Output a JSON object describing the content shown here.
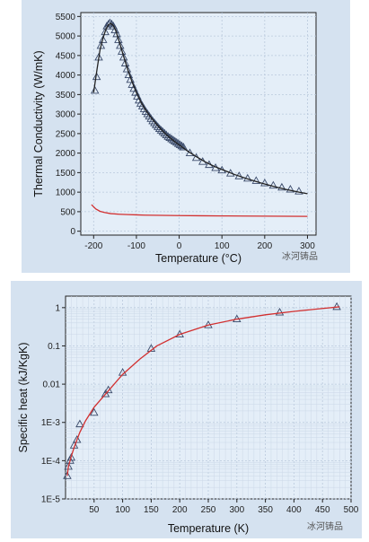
{
  "chart_data": [
    {
      "type": "scatter",
      "xlabel": "Temperature (°C)",
      "ylabel": "Thermal Conductivity (W/mK)",
      "xlim": [
        -230,
        320
      ],
      "ylim": [
        -100,
        5600
      ],
      "xticks": [
        -200,
        -100,
        0,
        100,
        200,
        300
      ],
      "xtick_labels": [
        "-200",
        "-100",
        "0",
        "100",
        "200",
        "300"
      ],
      "yticks": [
        0,
        500,
        1000,
        1500,
        2000,
        2500,
        3000,
        3500,
        4000,
        4500,
        5000,
        5500
      ],
      "ytick_labels": [
        "0",
        "500",
        "1000",
        "1500",
        "2000",
        "2500",
        "3000",
        "3500",
        "4000",
        "4500",
        "5000",
        "5500"
      ],
      "grid": true,
      "series": [
        {
          "marker": "triangle",
          "color": "#3a4a6a",
          "x": [
            -197,
            -193,
            -188,
            -183,
            -178,
            -173,
            -169,
            -165,
            -162,
            -158,
            -154,
            -150,
            -146,
            -142,
            -138,
            -134,
            -130,
            -126,
            -122,
            -118,
            -114,
            -110,
            -106,
            -102,
            -98,
            -94,
            -90,
            -86,
            -82,
            -78,
            -74,
            -70,
            -66,
            -62,
            -58,
            -54,
            -50,
            -46,
            -42,
            -38,
            -34,
            -30,
            -26,
            -22,
            -18,
            -14,
            -10,
            -6,
            -2,
            2,
            6,
            10,
            25,
            40,
            55,
            70,
            85,
            100,
            120,
            140,
            160,
            180,
            200,
            220,
            240,
            260,
            280
          ],
          "y": [
            3600,
            3950,
            4450,
            4750,
            4900,
            5100,
            5250,
            5300,
            5330,
            5300,
            5250,
            5150,
            5050,
            4900,
            4750,
            4600,
            4450,
            4300,
            4150,
            4000,
            3880,
            3750,
            3650,
            3550,
            3450,
            3350,
            3270,
            3200,
            3130,
            3060,
            3000,
            2940,
            2880,
            2820,
            2770,
            2720,
            2670,
            2620,
            2580,
            2540,
            2500,
            2460,
            2420,
            2390,
            2360,
            2330,
            2300,
            2270,
            2240,
            2210,
            2180,
            2150,
            2000,
            1880,
            1780,
            1700,
            1620,
            1560,
            1480,
            1410,
            1350,
            1290,
            1230,
            1170,
            1120,
            1070,
            1020
          ]
        },
        {
          "line": "fit",
          "color": "#222222",
          "x": [
            -200,
            -192,
            -185,
            -178,
            -172,
            -166,
            -160,
            -154,
            -148,
            -140,
            -130,
            -120,
            -110,
            -100,
            -90,
            -80,
            -70,
            -60,
            -50,
            -40,
            -30,
            -20,
            -10,
            0,
            20,
            40,
            60,
            80,
            100,
            130,
            160,
            190,
            220,
            250,
            280,
            300
          ],
          "y": [
            3550,
            4150,
            4650,
            4950,
            5150,
            5280,
            5320,
            5270,
            5130,
            4850,
            4480,
            4130,
            3820,
            3550,
            3320,
            3130,
            2970,
            2830,
            2700,
            2580,
            2470,
            2380,
            2290,
            2210,
            2050,
            1910,
            1780,
            1670,
            1580,
            1450,
            1340,
            1240,
            1150,
            1070,
            1000,
            960
          ]
        },
        {
          "line": "lower",
          "color": "#d23030",
          "x": [
            -205,
            -195,
            -185,
            -175,
            -160,
            -140,
            -120,
            -100,
            -80,
            -60,
            -40,
            -20,
            0,
            50,
            100,
            150,
            200,
            250,
            300
          ],
          "y": [
            680,
            570,
            510,
            480,
            450,
            435,
            425,
            418,
            412,
            408,
            405,
            402,
            400,
            395,
            392,
            389,
            386,
            383,
            380
          ]
        }
      ],
      "watermark": "冰河铸品"
    },
    {
      "type": "scatter",
      "xlabel": "Temperature (K)",
      "ylabel": "Specific heat (kJ/KgK)",
      "xlim": [
        0,
        500
      ],
      "ylim": [
        1e-05,
        2
      ],
      "yscale": "log",
      "xticks": [
        50,
        100,
        150,
        200,
        250,
        300,
        350,
        400,
        450,
        500
      ],
      "xtick_labels": [
        "50",
        "100",
        "150",
        "200",
        "250",
        "300",
        "350",
        "400",
        "450",
        "500"
      ],
      "yticks": [
        1e-05,
        0.0001,
        0.001,
        0.01,
        0.1,
        1
      ],
      "ytick_labels": [
        "1E-5",
        "1E-4",
        "1E-3",
        "0.01",
        "0.1",
        "1"
      ],
      "grid": true,
      "series": [
        {
          "marker": "triangle",
          "color": "#3a4a6a",
          "x": [
            3,
            5,
            8,
            10,
            15,
            20,
            25,
            50,
            70,
            75,
            100,
            150,
            200,
            250,
            300,
            375,
            475
          ],
          "y": [
            4e-05,
            7e-05,
            0.0001,
            0.00012,
            0.00025,
            0.00035,
            0.0009,
            0.0018,
            0.0055,
            0.007,
            0.02,
            0.085,
            0.2,
            0.35,
            0.5,
            0.75,
            1.05
          ]
        },
        {
          "line": "fit",
          "color": "#d23030",
          "x": [
            3,
            5,
            8,
            10,
            15,
            20,
            25,
            35,
            50,
            70,
            100,
            130,
            160,
            200,
            250,
            300,
            350,
            400,
            450,
            480
          ],
          "y": [
            4e-05,
            7e-05,
            0.0001,
            0.00013,
            0.00022,
            0.00035,
            0.00055,
            0.0011,
            0.0025,
            0.0055,
            0.018,
            0.045,
            0.1,
            0.2,
            0.35,
            0.5,
            0.65,
            0.8,
            0.95,
            1.05
          ]
        }
      ],
      "watermark": "冰河铸品"
    }
  ]
}
